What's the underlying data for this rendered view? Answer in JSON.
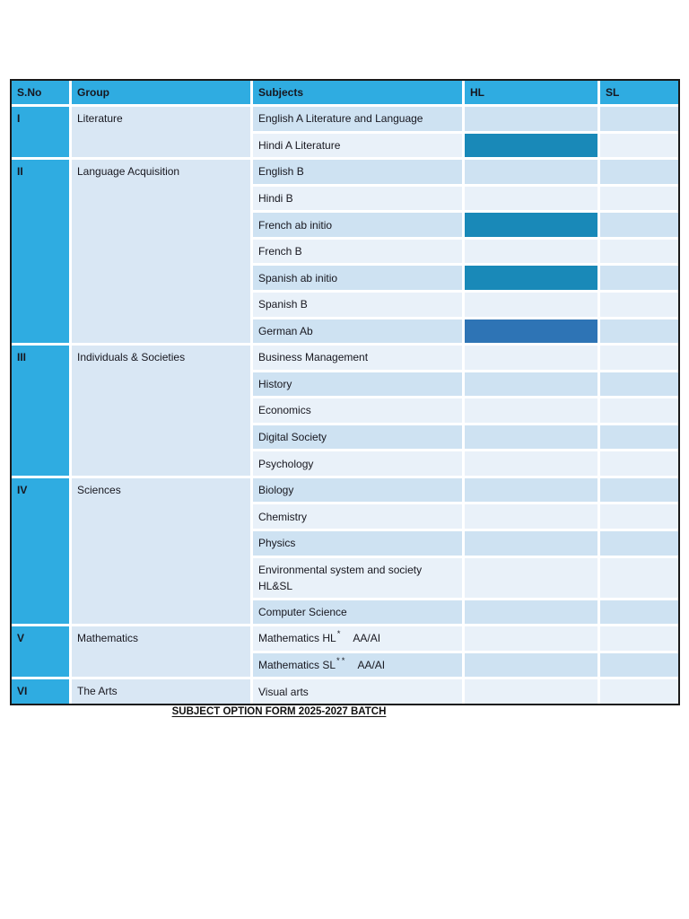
{
  "page": {
    "footer_title": "SUBJECT OPTION FORM 2025-2027 BATCH"
  },
  "colors": {
    "header_bg": "#2FACE1",
    "sno_bg": "#2FACE1",
    "group_bg": "#D9E7F4",
    "row_dark": "#CEE2F2",
    "row_light": "#E9F1F9",
    "highlight_teal": "#1989B8",
    "highlight_blue": "#2E74B5",
    "table_border": "#1A1A1A",
    "cell_gap": "#FFFFFF",
    "text": "#17171F",
    "page_bg": "#FFFFFF"
  },
  "table": {
    "columns": [
      {
        "key": "sno",
        "label": "S.No"
      },
      {
        "key": "group",
        "label": "Group"
      },
      {
        "key": "subjects",
        "label": "Subjects"
      },
      {
        "key": "hl",
        "label": "HL"
      },
      {
        "key": "sl",
        "label": "SL"
      }
    ],
    "groups": [
      {
        "sno": "I",
        "name": "Literature",
        "subjects": [
          {
            "label": "English A Literature and Language",
            "hl": "none",
            "sl": "none"
          },
          {
            "label": "Hindi A Literature",
            "hl": "teal",
            "sl": "none"
          }
        ]
      },
      {
        "sno": "II",
        "name": "Language Acquisition",
        "subjects": [
          {
            "label": "English B",
            "hl": "none",
            "sl": "none"
          },
          {
            "label": "Hindi B",
            "hl": "none",
            "sl": "none"
          },
          {
            "label": "French ab initio",
            "hl": "teal",
            "sl": "none"
          },
          {
            "label": "French B",
            "hl": "none",
            "sl": "none"
          },
          {
            "label": "Spanish ab initio",
            "hl": "teal",
            "sl": "none"
          },
          {
            "label": "Spanish B",
            "hl": "none",
            "sl": "none"
          },
          {
            "label": "German Ab",
            "hl": "blue",
            "sl": "none"
          }
        ]
      },
      {
        "sno": "III",
        "name": "Individuals & Societies",
        "subjects": [
          {
            "label": "Business Management",
            "hl": "none",
            "sl": "none"
          },
          {
            "label": "History",
            "hl": "none",
            "sl": "none"
          },
          {
            "label": "Economics",
            "hl": "none",
            "sl": "none"
          },
          {
            "label": "Digital Society",
            "hl": "none",
            "sl": "none"
          },
          {
            "label": "Psychology",
            "hl": "none",
            "sl": "none"
          }
        ]
      },
      {
        "sno": "IV",
        "name": "Sciences",
        "subjects": [
          {
            "label": "Biology",
            "hl": "none",
            "sl": "none"
          },
          {
            "label": "Chemistry",
            "hl": "none",
            "sl": "none"
          },
          {
            "label": "Physics",
            "hl": "none",
            "sl": "none"
          },
          {
            "lines": [
              "Environmental system and society",
              "HL&SL"
            ],
            "tall": true,
            "hl": "none",
            "sl": "none"
          },
          {
            "label": "Computer Science",
            "hl": "none",
            "sl": "none"
          }
        ]
      },
      {
        "sno": "V",
        "name": "Mathematics",
        "subjects": [
          {
            "label": "Mathematics HL",
            "sup": "*",
            "suffix": "AA/AI",
            "hl": "none",
            "sl": "none"
          },
          {
            "label": "Mathematics SL",
            "sup": "**",
            "suffix": "AA/AI",
            "hl": "none",
            "sl": "none"
          }
        ]
      },
      {
        "sno": "VI",
        "name": "The Arts",
        "subjects": [
          {
            "label": "Visual arts",
            "hl": "none",
            "sl": "none"
          }
        ]
      }
    ]
  }
}
